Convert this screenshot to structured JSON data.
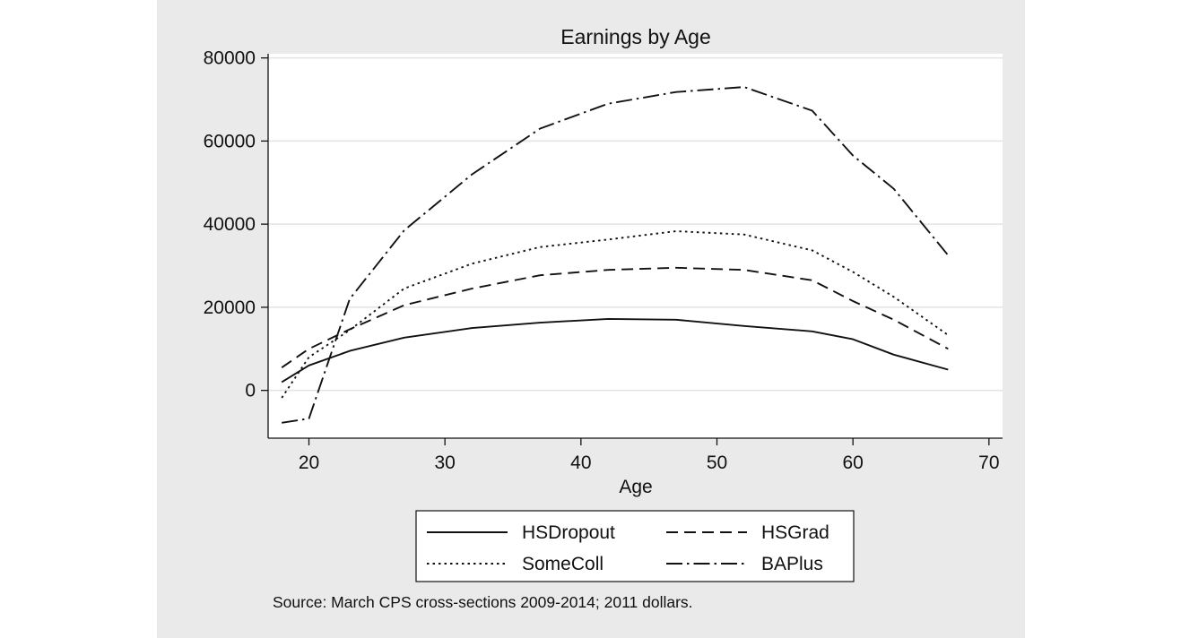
{
  "chart_data": {
    "type": "line",
    "title": "Earnings by Age",
    "xlabel": "Age",
    "ylabel": "",
    "xlim": [
      17,
      71
    ],
    "ylim": [
      -11500,
      81000
    ],
    "xticks": [
      20,
      30,
      40,
      50,
      60,
      70
    ],
    "yticks": [
      0,
      20000,
      40000,
      60000,
      80000
    ],
    "x_tick_labels": [
      "20",
      "30",
      "40",
      "50",
      "60",
      "70"
    ],
    "y_tick_labels": [
      "0",
      "20000",
      "40000",
      "60000",
      "80000"
    ],
    "grid": "horizontal",
    "legend": "bottom",
    "legend_columns": 2,
    "note": "Source: March CPS cross-sections 2009-2014; 2011 dollars.",
    "series": [
      {
        "name": "HSDropout",
        "style": "solid",
        "x": [
          18,
          20,
          23,
          27,
          32,
          37,
          42,
          47,
          52,
          57,
          60,
          63,
          67
        ],
        "values": [
          2000,
          6000,
          9500,
          12700,
          15000,
          16300,
          17200,
          17000,
          15500,
          14200,
          12300,
          8600,
          5000
        ]
      },
      {
        "name": "HSGrad",
        "style": "dash",
        "x": [
          18,
          20,
          23,
          27,
          32,
          37,
          42,
          47,
          52,
          57,
          60,
          63,
          67
        ],
        "values": [
          5500,
          10000,
          14700,
          20500,
          24500,
          27700,
          29000,
          29500,
          29000,
          26500,
          21500,
          17000,
          10000
        ]
      },
      {
        "name": "SomeColl",
        "style": "dot",
        "x": [
          18,
          20,
          23,
          27,
          32,
          37,
          42,
          47,
          52,
          57,
          60,
          63,
          67
        ],
        "values": [
          -1800,
          8000,
          14500,
          24500,
          30500,
          34500,
          36300,
          38300,
          37500,
          33700,
          28500,
          22500,
          13300
        ]
      },
      {
        "name": "BAPlus",
        "style": "dashdot",
        "x": [
          18,
          20,
          23,
          27,
          32,
          37,
          42,
          47,
          52,
          57,
          60,
          63,
          67
        ],
        "values": [
          -7800,
          -6800,
          22000,
          38500,
          52000,
          63000,
          69000,
          71800,
          73000,
          67300,
          56500,
          48500,
          32500
        ]
      }
    ]
  }
}
